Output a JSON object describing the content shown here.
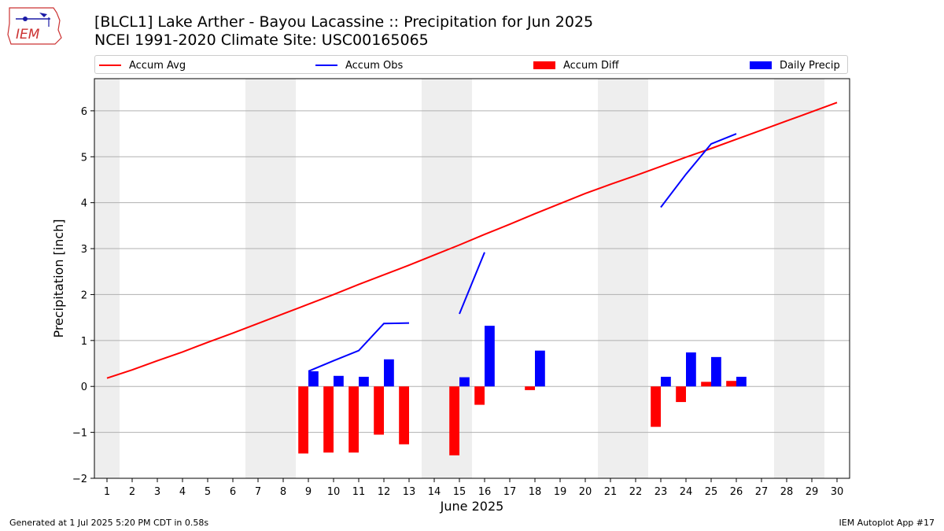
{
  "header": {
    "title_line1": "[BLCL1] Lake Arther - Bayou Lacassine :: Precipitation for Jun 2025",
    "title_line2": "NCEI 1991-2020 Climate Site: USC00165065",
    "logo_text": "IEM"
  },
  "legend": {
    "accum_avg": "Accum Avg",
    "accum_obs": "Accum Obs",
    "accum_diff": "Accum Diff",
    "daily_precip": "Daily Precip"
  },
  "footer": {
    "left": "Generated at 1 Jul 2025 5:20 PM CDT in 0.58s",
    "right": "IEM Autoplot App #17"
  },
  "colors": {
    "avg": "#ff0000",
    "obs": "#0000ff",
    "diff": "#ff0000",
    "daily": "#0000ff",
    "weekend_shade": "#eeeeee",
    "grid": "#b0b0b0"
  },
  "chart_data": {
    "type": "bar",
    "xlabel": "June 2025",
    "ylabel": "Precipitation [inch]",
    "xlim": [
      0.5,
      30.5
    ],
    "ylim": [
      -2,
      6.7
    ],
    "yticks": [
      -2,
      -1,
      0,
      1,
      2,
      3,
      4,
      5,
      6
    ],
    "ytick_labels": [
      "−2",
      "−1",
      "0",
      "1",
      "2",
      "3",
      "4",
      "5",
      "6"
    ],
    "days": [
      1,
      2,
      3,
      4,
      5,
      6,
      7,
      8,
      9,
      10,
      11,
      12,
      13,
      14,
      15,
      16,
      17,
      18,
      19,
      20,
      21,
      22,
      23,
      24,
      25,
      26,
      27,
      28,
      29,
      30
    ],
    "grid": "horizontal",
    "legend_position": "top",
    "weekend_shading": [
      [
        0.5,
        1.5
      ],
      [
        6.5,
        8.5
      ],
      [
        13.5,
        15.5
      ],
      [
        20.5,
        22.5
      ],
      [
        27.5,
        29.5
      ]
    ],
    "series": [
      {
        "name": "Accum Avg",
        "kind": "line",
        "x": [
          1,
          2,
          3,
          4,
          5,
          6,
          7,
          8,
          9,
          10,
          11,
          12,
          13,
          14,
          15,
          16,
          17,
          18,
          19,
          20,
          21,
          22,
          23,
          24,
          25,
          26,
          27,
          28,
          29,
          30
        ],
        "values": [
          0.18,
          0.36,
          0.56,
          0.75,
          0.96,
          1.16,
          1.37,
          1.58,
          1.79,
          2.0,
          2.22,
          2.43,
          2.64,
          2.86,
          3.08,
          3.31,
          3.53,
          3.76,
          3.98,
          4.2,
          4.4,
          4.59,
          4.79,
          4.99,
          5.18,
          5.38,
          5.58,
          5.78,
          5.98,
          6.18
        ]
      },
      {
        "name": "Accum Obs",
        "kind": "line",
        "segments": [
          {
            "x": [
              9,
              10,
              11,
              12,
              13
            ],
            "values": [
              0.33,
              0.56,
              0.78,
              1.37,
              1.38
            ]
          },
          {
            "x": [
              15,
              16
            ],
            "values": [
              1.58,
              2.92
            ]
          },
          {
            "x": [
              23,
              24,
              25,
              26
            ],
            "values": [
              3.9,
              4.62,
              5.28,
              5.5
            ]
          }
        ]
      },
      {
        "name": "Accum Diff",
        "kind": "bar",
        "x": [
          9,
          10,
          11,
          12,
          13,
          15,
          16,
          18,
          23,
          24,
          25,
          26
        ],
        "values": [
          -1.46,
          -1.44,
          -1.44,
          -1.05,
          -1.26,
          -1.5,
          -0.4,
          -0.08,
          -0.88,
          -0.34,
          0.1,
          0.12
        ]
      },
      {
        "name": "Daily Precip",
        "kind": "bar",
        "x": [
          9,
          10,
          11,
          12,
          15,
          16,
          18,
          23,
          24,
          25,
          26
        ],
        "values": [
          0.33,
          0.23,
          0.21,
          0.59,
          0.2,
          1.32,
          0.78,
          0.21,
          0.74,
          0.64,
          0.21
        ]
      }
    ]
  }
}
